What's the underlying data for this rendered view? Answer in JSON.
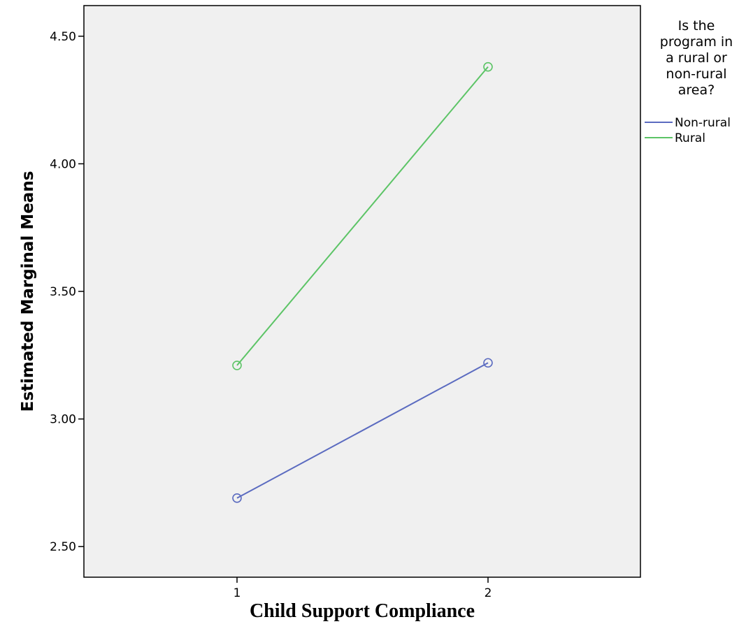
{
  "chart_data": {
    "type": "line",
    "title": "",
    "xlabel": "Child Support Compliance",
    "ylabel": "Estimated Marginal Means",
    "categories": [
      "1",
      "2"
    ],
    "yticks": [
      "2.50",
      "3.00",
      "3.50",
      "4.00",
      "4.50"
    ],
    "ylim": [
      2.38,
      4.62
    ],
    "grid": false,
    "legend": {
      "title_lines": [
        "Is the",
        "program in",
        "a rural or",
        "non-rural",
        "area?"
      ],
      "placement": "right"
    },
    "series": [
      {
        "name": "Non-rural",
        "color": "#5b6bc0",
        "values": [
          2.69,
          3.22
        ]
      },
      {
        "name": "Rural",
        "color": "#5cc466",
        "values": [
          3.21,
          4.38
        ]
      }
    ]
  }
}
